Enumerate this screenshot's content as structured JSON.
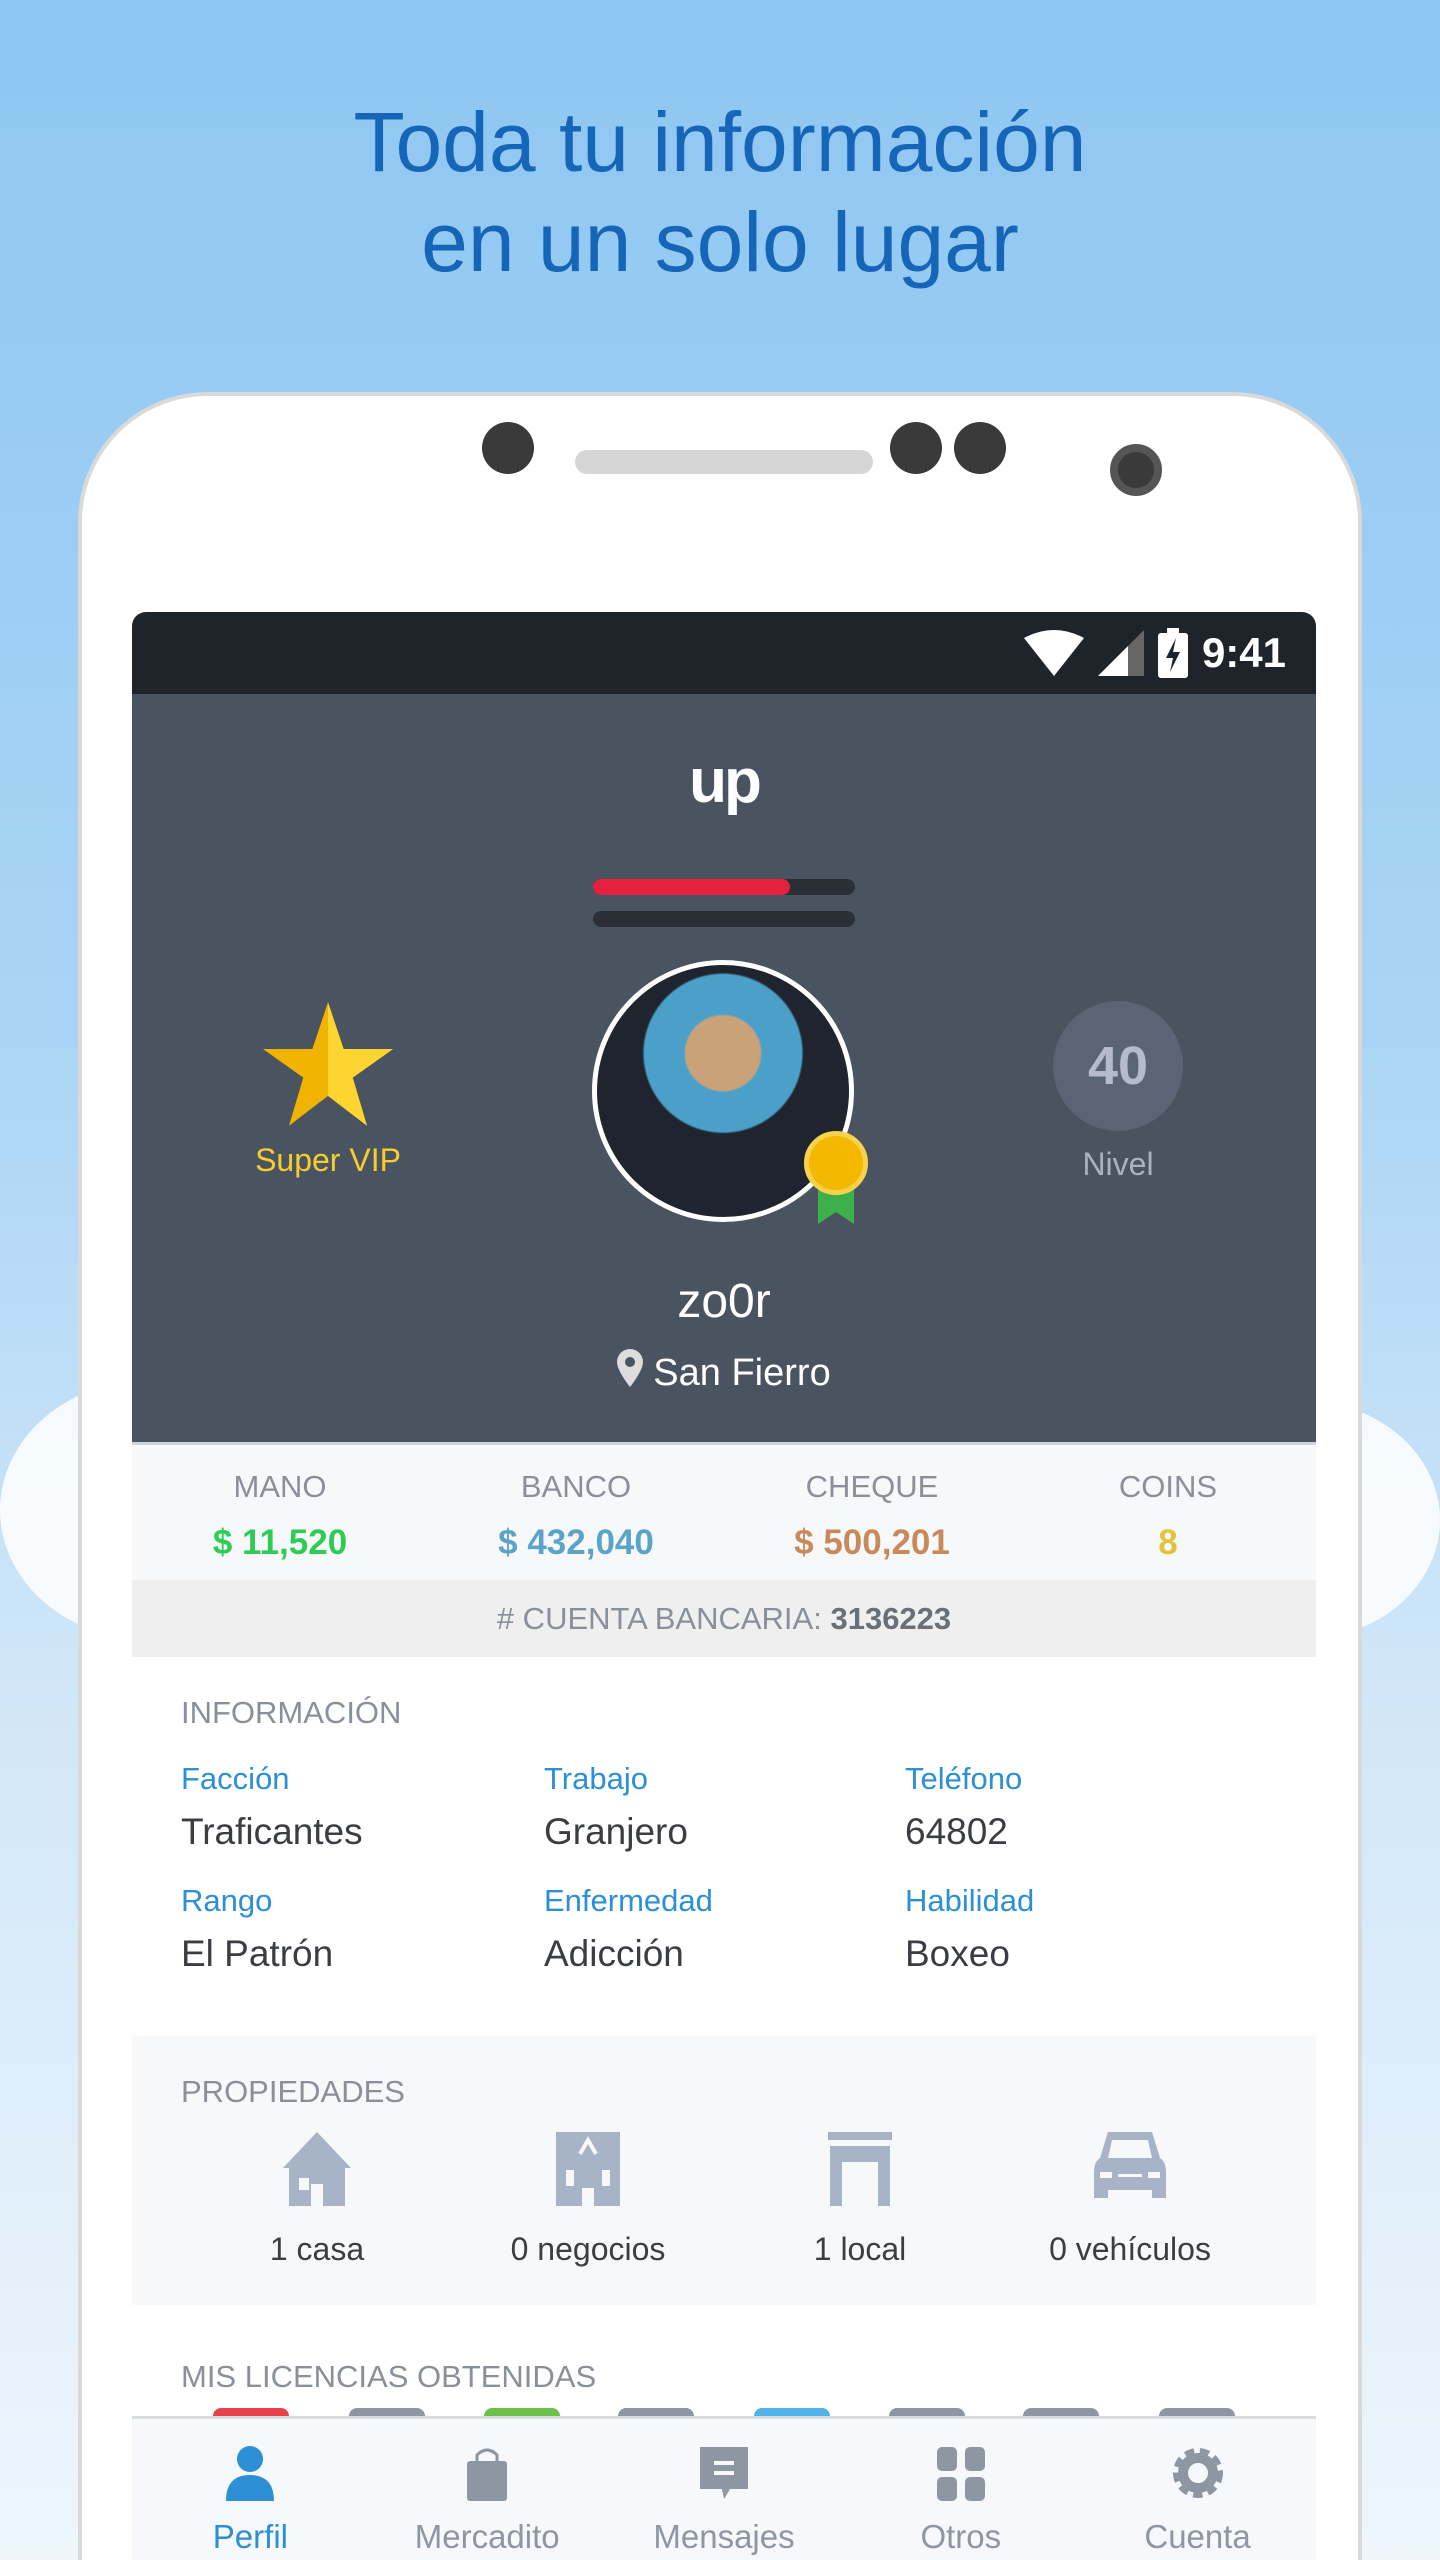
{
  "promo": {
    "line1": "Toda tu información",
    "line2": "en un solo lugar"
  },
  "status_bar": {
    "time": "9:41"
  },
  "profile": {
    "logo": "up",
    "health_fraction": 0.75,
    "armor_fraction": 0,
    "vip_label": "Super VIP",
    "level": "40",
    "level_label": "Nivel",
    "username": "zo0r",
    "location": "San Fierro"
  },
  "stats": [
    {
      "label": "MANO",
      "value": "$ 11,520",
      "color": "#2ecc55"
    },
    {
      "label": "BANCO",
      "value": "$ 432,040",
      "color": "#5ba3c9"
    },
    {
      "label": "CHEQUE",
      "value": "$ 500,201",
      "color": "#c98a5b"
    },
    {
      "label": "COINS",
      "value": "8",
      "color": "#e3c33a"
    }
  ],
  "account": {
    "label": "# CUENTA BANCARIA:",
    "number": "3136223"
  },
  "info": {
    "heading": "INFORMACIÓN",
    "fields": [
      {
        "label": "Facción",
        "value": "Traficantes"
      },
      {
        "label": "Trabajo",
        "value": "Granjero"
      },
      {
        "label": "Teléfono",
        "value": "64802"
      },
      {
        "label": "Rango",
        "value": "El Patrón"
      },
      {
        "label": "Enfermedad",
        "value": "Adicción"
      },
      {
        "label": "Habilidad",
        "value": "Boxeo"
      }
    ]
  },
  "properties": {
    "heading": "PROPIEDADES",
    "items": [
      {
        "icon": "house-icon",
        "label": "1 casa"
      },
      {
        "icon": "building-icon",
        "label": "0 negocios"
      },
      {
        "icon": "store-icon",
        "label": "1 local"
      },
      {
        "icon": "car-icon",
        "label": "0 vehículos"
      }
    ]
  },
  "licenses": {
    "heading": "MIS LICENCIAS OBTENIDAS",
    "colors": [
      "#e8414b",
      "#8d96a2",
      "#6cc04a",
      "#8d96a2",
      "#4fb3ea",
      "#8d96a2",
      "#8d96a2",
      "#8d96a2"
    ]
  },
  "nav": [
    {
      "label": "Perfil",
      "icon": "person-icon",
      "active": true
    },
    {
      "label": "Mercadito",
      "icon": "shopping-bag-icon"
    },
    {
      "label": "Mensajes",
      "icon": "message-icon"
    },
    {
      "label": "Otros",
      "icon": "grid-icon"
    },
    {
      "label": "Cuenta",
      "icon": "gear-icon"
    }
  ]
}
